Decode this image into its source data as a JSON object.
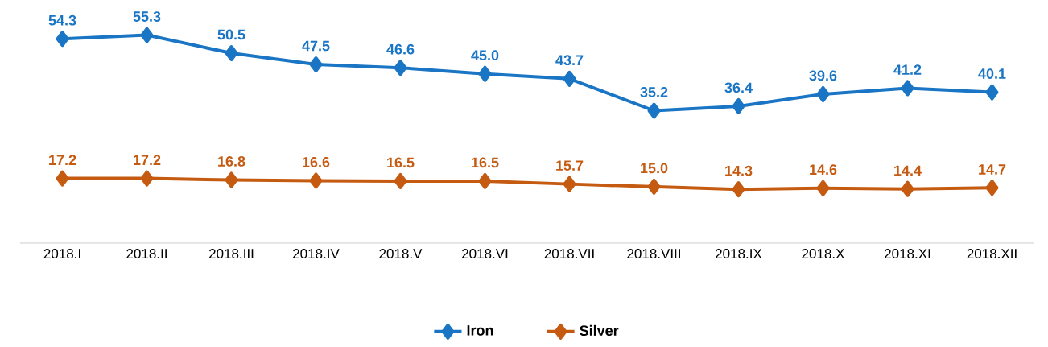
{
  "chart_data": {
    "type": "line",
    "categories": [
      "2018.I",
      "2018.II",
      "2018.III",
      "2018.IV",
      "2018.V",
      "2018.VI",
      "2018.VII",
      "2018.VIII",
      "2018.IX",
      "2018.X",
      "2018.XI",
      "2018.XII"
    ],
    "series": [
      {
        "name": "Iron",
        "color": "#1a75c4",
        "values": [
          54.3,
          55.3,
          50.5,
          47.5,
          46.6,
          45.0,
          43.7,
          35.2,
          36.4,
          39.6,
          41.2,
          40.1
        ],
        "value_labels": [
          "54.3",
          "55.3",
          "50.5",
          "47.5",
          "46.6",
          "45.0",
          "43.7",
          "35.2",
          "36.4",
          "39.6",
          "41.2",
          "40.1"
        ]
      },
      {
        "name": "Silver",
        "color": "#c55a11",
        "values": [
          17.2,
          17.2,
          16.8,
          16.6,
          16.5,
          16.5,
          15.7,
          15.0,
          14.3,
          14.6,
          14.4,
          14.7
        ],
        "value_labels": [
          "17.2",
          "17.2",
          "16.8",
          "16.6",
          "16.5",
          "16.5",
          "15.7",
          "15.0",
          "14.3",
          "14.6",
          "14.4",
          "14.7"
        ]
      }
    ],
    "marker": "diamond",
    "line_style": "solid",
    "legend": "bottom"
  }
}
